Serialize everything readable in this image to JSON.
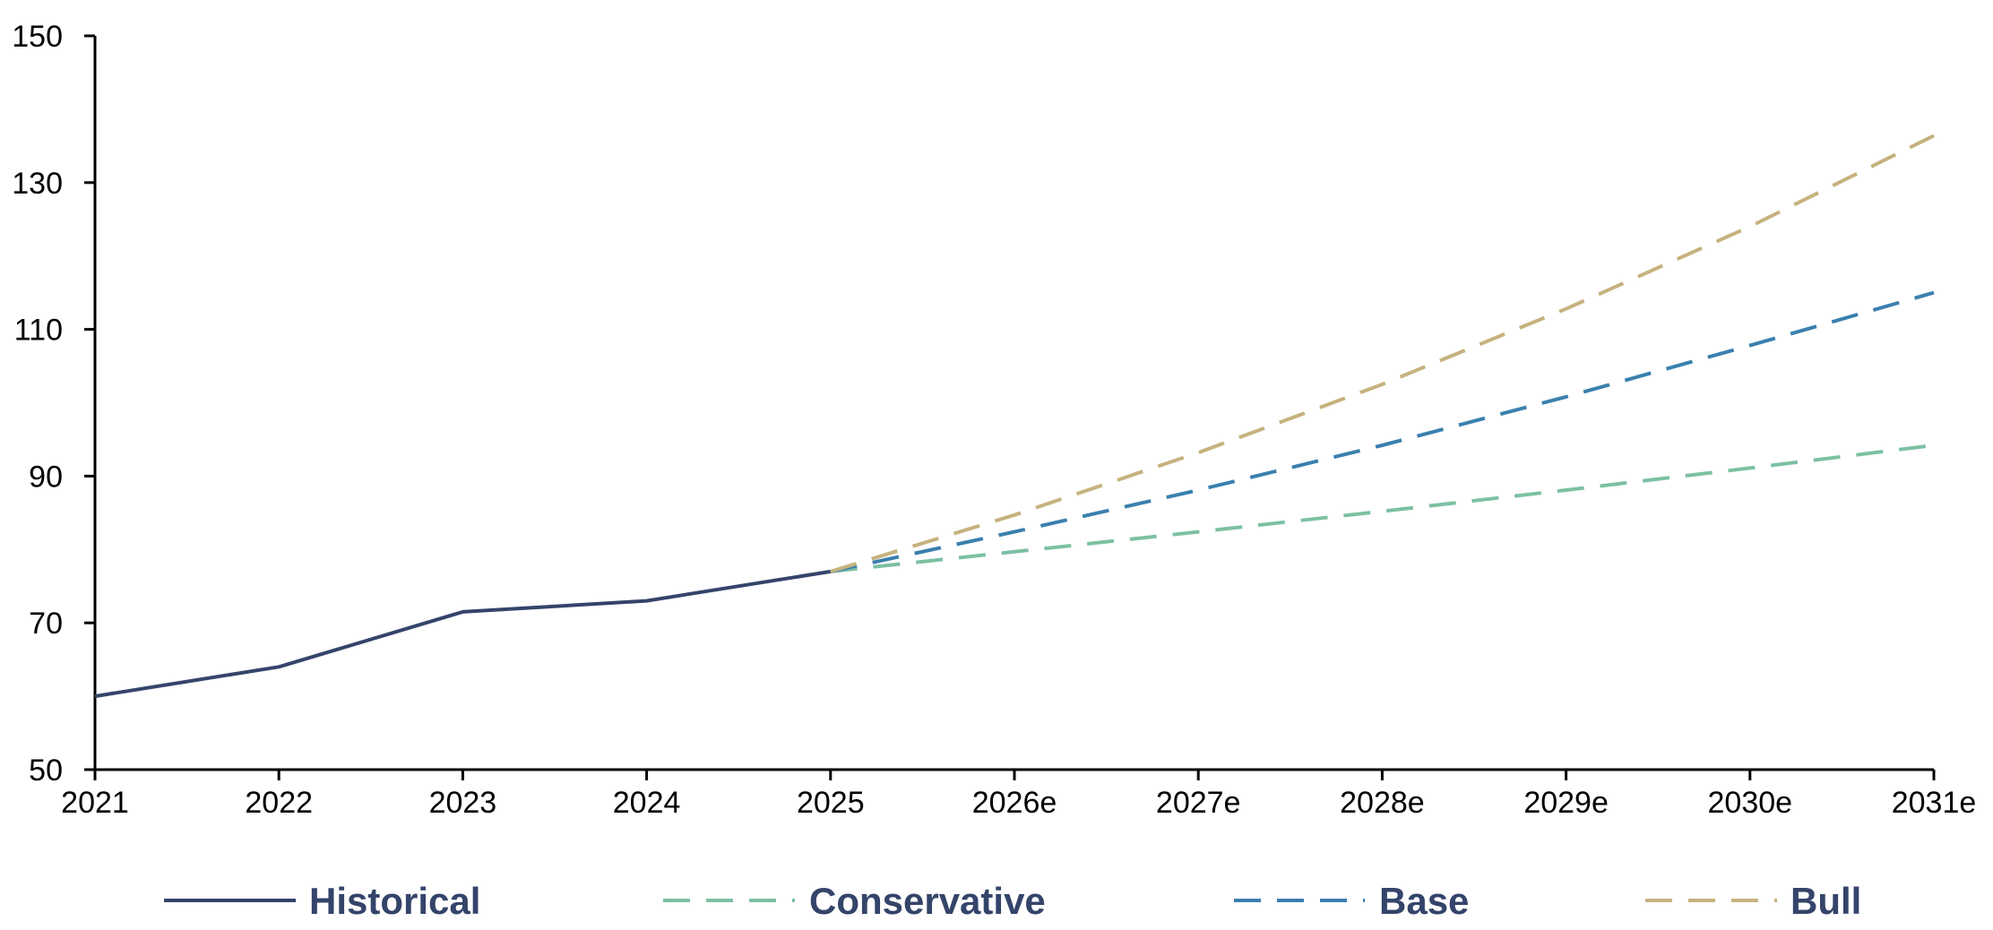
{
  "chart_data": {
    "type": "line",
    "categories": [
      "2021",
      "2022",
      "2023",
      "2024",
      "2025",
      "2026e",
      "2027e",
      "2028e",
      "2029e",
      "2030e",
      "2031e"
    ],
    "ylim": [
      50,
      150
    ],
    "yticks": [
      50,
      70,
      90,
      110,
      130,
      150
    ],
    "grid": false,
    "legend_position": "bottom",
    "series": [
      {
        "name": "Historical",
        "style": "solid",
        "color": "#34446a",
        "values": [
          60,
          64,
          71.5,
          73,
          77,
          null,
          null,
          null,
          null,
          null,
          null
        ]
      },
      {
        "name": "Conservative",
        "style": "dashed",
        "color": "#7cc0a2",
        "values": [
          null,
          null,
          null,
          null,
          77,
          79.7,
          82.4,
          85.2,
          88.1,
          91.1,
          94.2
        ]
      },
      {
        "name": "Base",
        "style": "dashed",
        "color": "#3a80ae",
        "values": [
          null,
          null,
          null,
          null,
          77,
          82.4,
          88.1,
          94.2,
          100.8,
          107.8,
          115
        ]
      },
      {
        "name": "Bull",
        "style": "dashed",
        "color": "#c6b27e",
        "values": [
          null,
          null,
          null,
          null,
          77,
          84.7,
          93.2,
          102.5,
          112.8,
          124,
          136.4
        ]
      }
    ]
  }
}
